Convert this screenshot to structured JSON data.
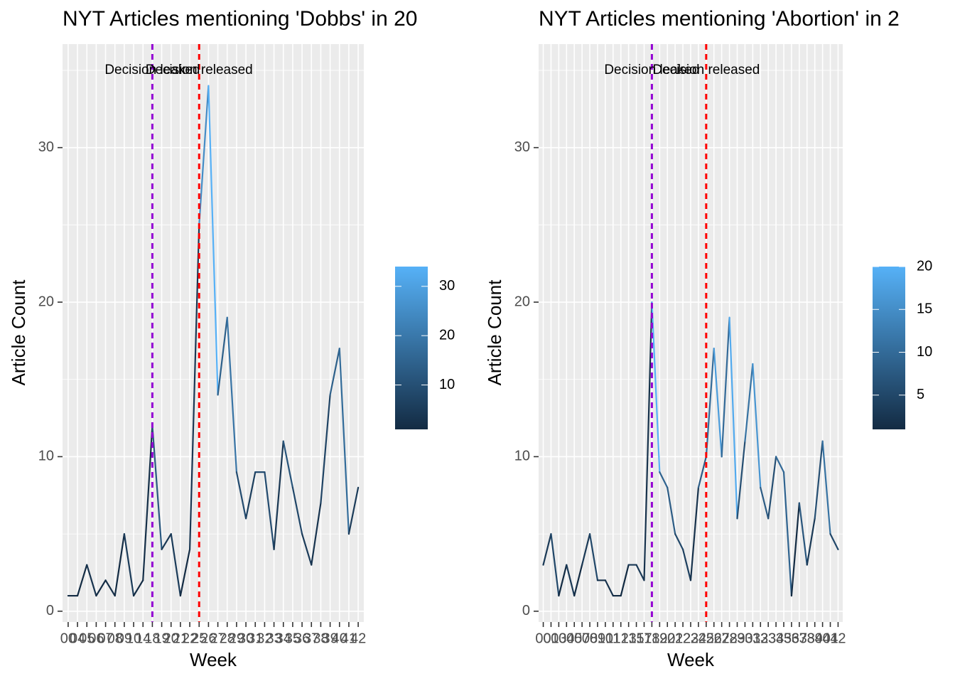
{
  "chart_data": [
    {
      "type": "line",
      "title": "NYT Articles mentioning 'Dobbs' in 20",
      "xlabel": "Week",
      "ylabel": "Article Count",
      "categories": [
        "00",
        "04",
        "05",
        "06",
        "07",
        "08",
        "09",
        "10",
        "14",
        "18",
        "19",
        "20",
        "21",
        "22",
        "25",
        "26",
        "27",
        "28",
        "29",
        "30",
        "31",
        "32",
        "33",
        "34",
        "35",
        "36",
        "37",
        "38",
        "39",
        "40",
        "41",
        "42"
      ],
      "values": [
        1,
        1,
        3,
        1,
        2,
        1,
        5,
        1,
        2,
        12,
        4,
        5,
        1,
        4,
        25,
        34,
        14,
        19,
        9,
        6,
        9,
        9,
        4,
        11,
        8,
        5,
        3,
        7,
        14,
        17,
        5,
        8
      ],
      "color_low": "#132B43",
      "color_high": "#56B1F7",
      "ylim": [
        -0.7,
        36.7
      ],
      "yticks": [
        0,
        10,
        20,
        30
      ],
      "minor_yticks": [
        5,
        15,
        25,
        35
      ],
      "grid": true,
      "colorbar_ticks": [
        10,
        20,
        30
      ],
      "annotations": [
        {
          "label": "Decision leaked",
          "x": "18",
          "y": 35,
          "color": "#9400D3"
        },
        {
          "label": "Decision released",
          "x": "25",
          "y": 35,
          "color": "#FF0000"
        }
      ]
    },
    {
      "type": "line",
      "title": "NYT Articles mentioning 'Abortion' in 2",
      "xlabel": "Week",
      "ylabel": "Article Count",
      "categories": [
        "00",
        "01",
        "03",
        "04",
        "05",
        "07",
        "08",
        "09",
        "10",
        "11",
        "12",
        "13",
        "15",
        "17",
        "18",
        "19",
        "20",
        "21",
        "22",
        "23",
        "24",
        "25",
        "26",
        "27",
        "28",
        "29",
        "30",
        "31",
        "32",
        "33",
        "34",
        "35",
        "36",
        "37",
        "38",
        "39",
        "40",
        "41",
        "42"
      ],
      "values": [
        3,
        5,
        1,
        3,
        1,
        3,
        5,
        2,
        2,
        1,
        1,
        3,
        3,
        2,
        20,
        9,
        8,
        5,
        4,
        2,
        8,
        10,
        17,
        10,
        19,
        6,
        11,
        16,
        8,
        6,
        10,
        9,
        1,
        7,
        3,
        6,
        11,
        5,
        4
      ],
      "color_low": "#132B43",
      "color_high": "#56B1F7",
      "ylim": [
        -0.7,
        36.7
      ],
      "yticks": [
        0,
        10,
        20,
        30
      ],
      "minor_yticks": [
        5,
        15,
        25,
        35
      ],
      "grid": true,
      "colorbar_ticks": [
        5,
        10,
        15,
        20
      ],
      "annotations": [
        {
          "label": "Decision leaked",
          "x": "18",
          "y": 35,
          "color": "#9400D3"
        },
        {
          "label": "Decision released",
          "x": "25",
          "y": 35,
          "color": "#FF0000"
        }
      ]
    }
  ]
}
